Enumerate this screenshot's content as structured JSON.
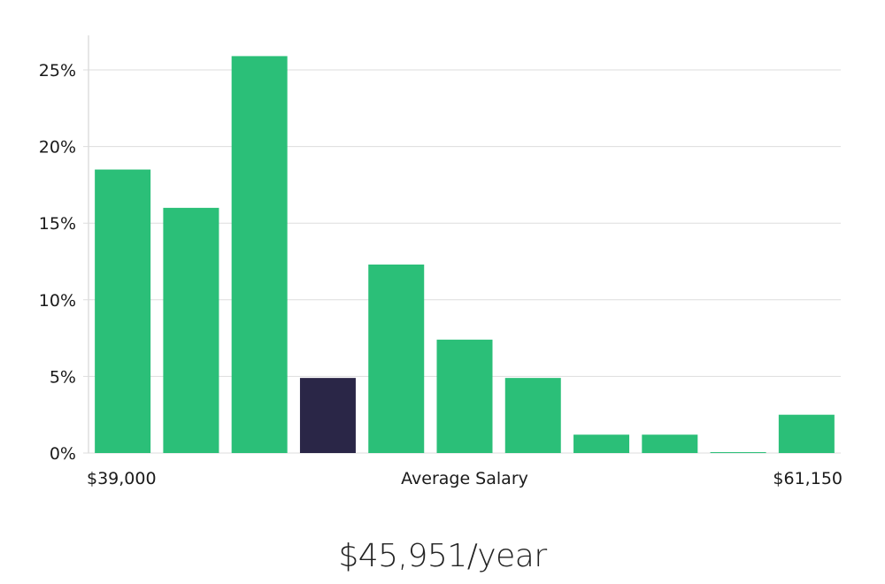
{
  "chart_data": {
    "type": "bar",
    "title": "",
    "xlabel": "Average Salary",
    "ylabel": "",
    "x_range_labels": {
      "min": "$39,000",
      "max": "$61,150"
    },
    "ylim": [
      0,
      27
    ],
    "yticks": [
      0,
      5,
      10,
      15,
      20,
      25
    ],
    "ytick_labels": [
      "0%",
      "5%",
      "10%",
      "15%",
      "20%",
      "25%"
    ],
    "grid": true,
    "values": [
      18.5,
      16.0,
      25.9,
      4.9,
      12.3,
      7.4,
      4.9,
      1.2,
      1.2,
      0.05,
      2.5
    ],
    "highlight_index": 3,
    "colors": {
      "bar": "#2bbf78",
      "highlight": "#2a2647",
      "grid": "#dddddd",
      "axis": "#cccccc"
    }
  },
  "summary": {
    "salary_text": "$45,951/year"
  }
}
